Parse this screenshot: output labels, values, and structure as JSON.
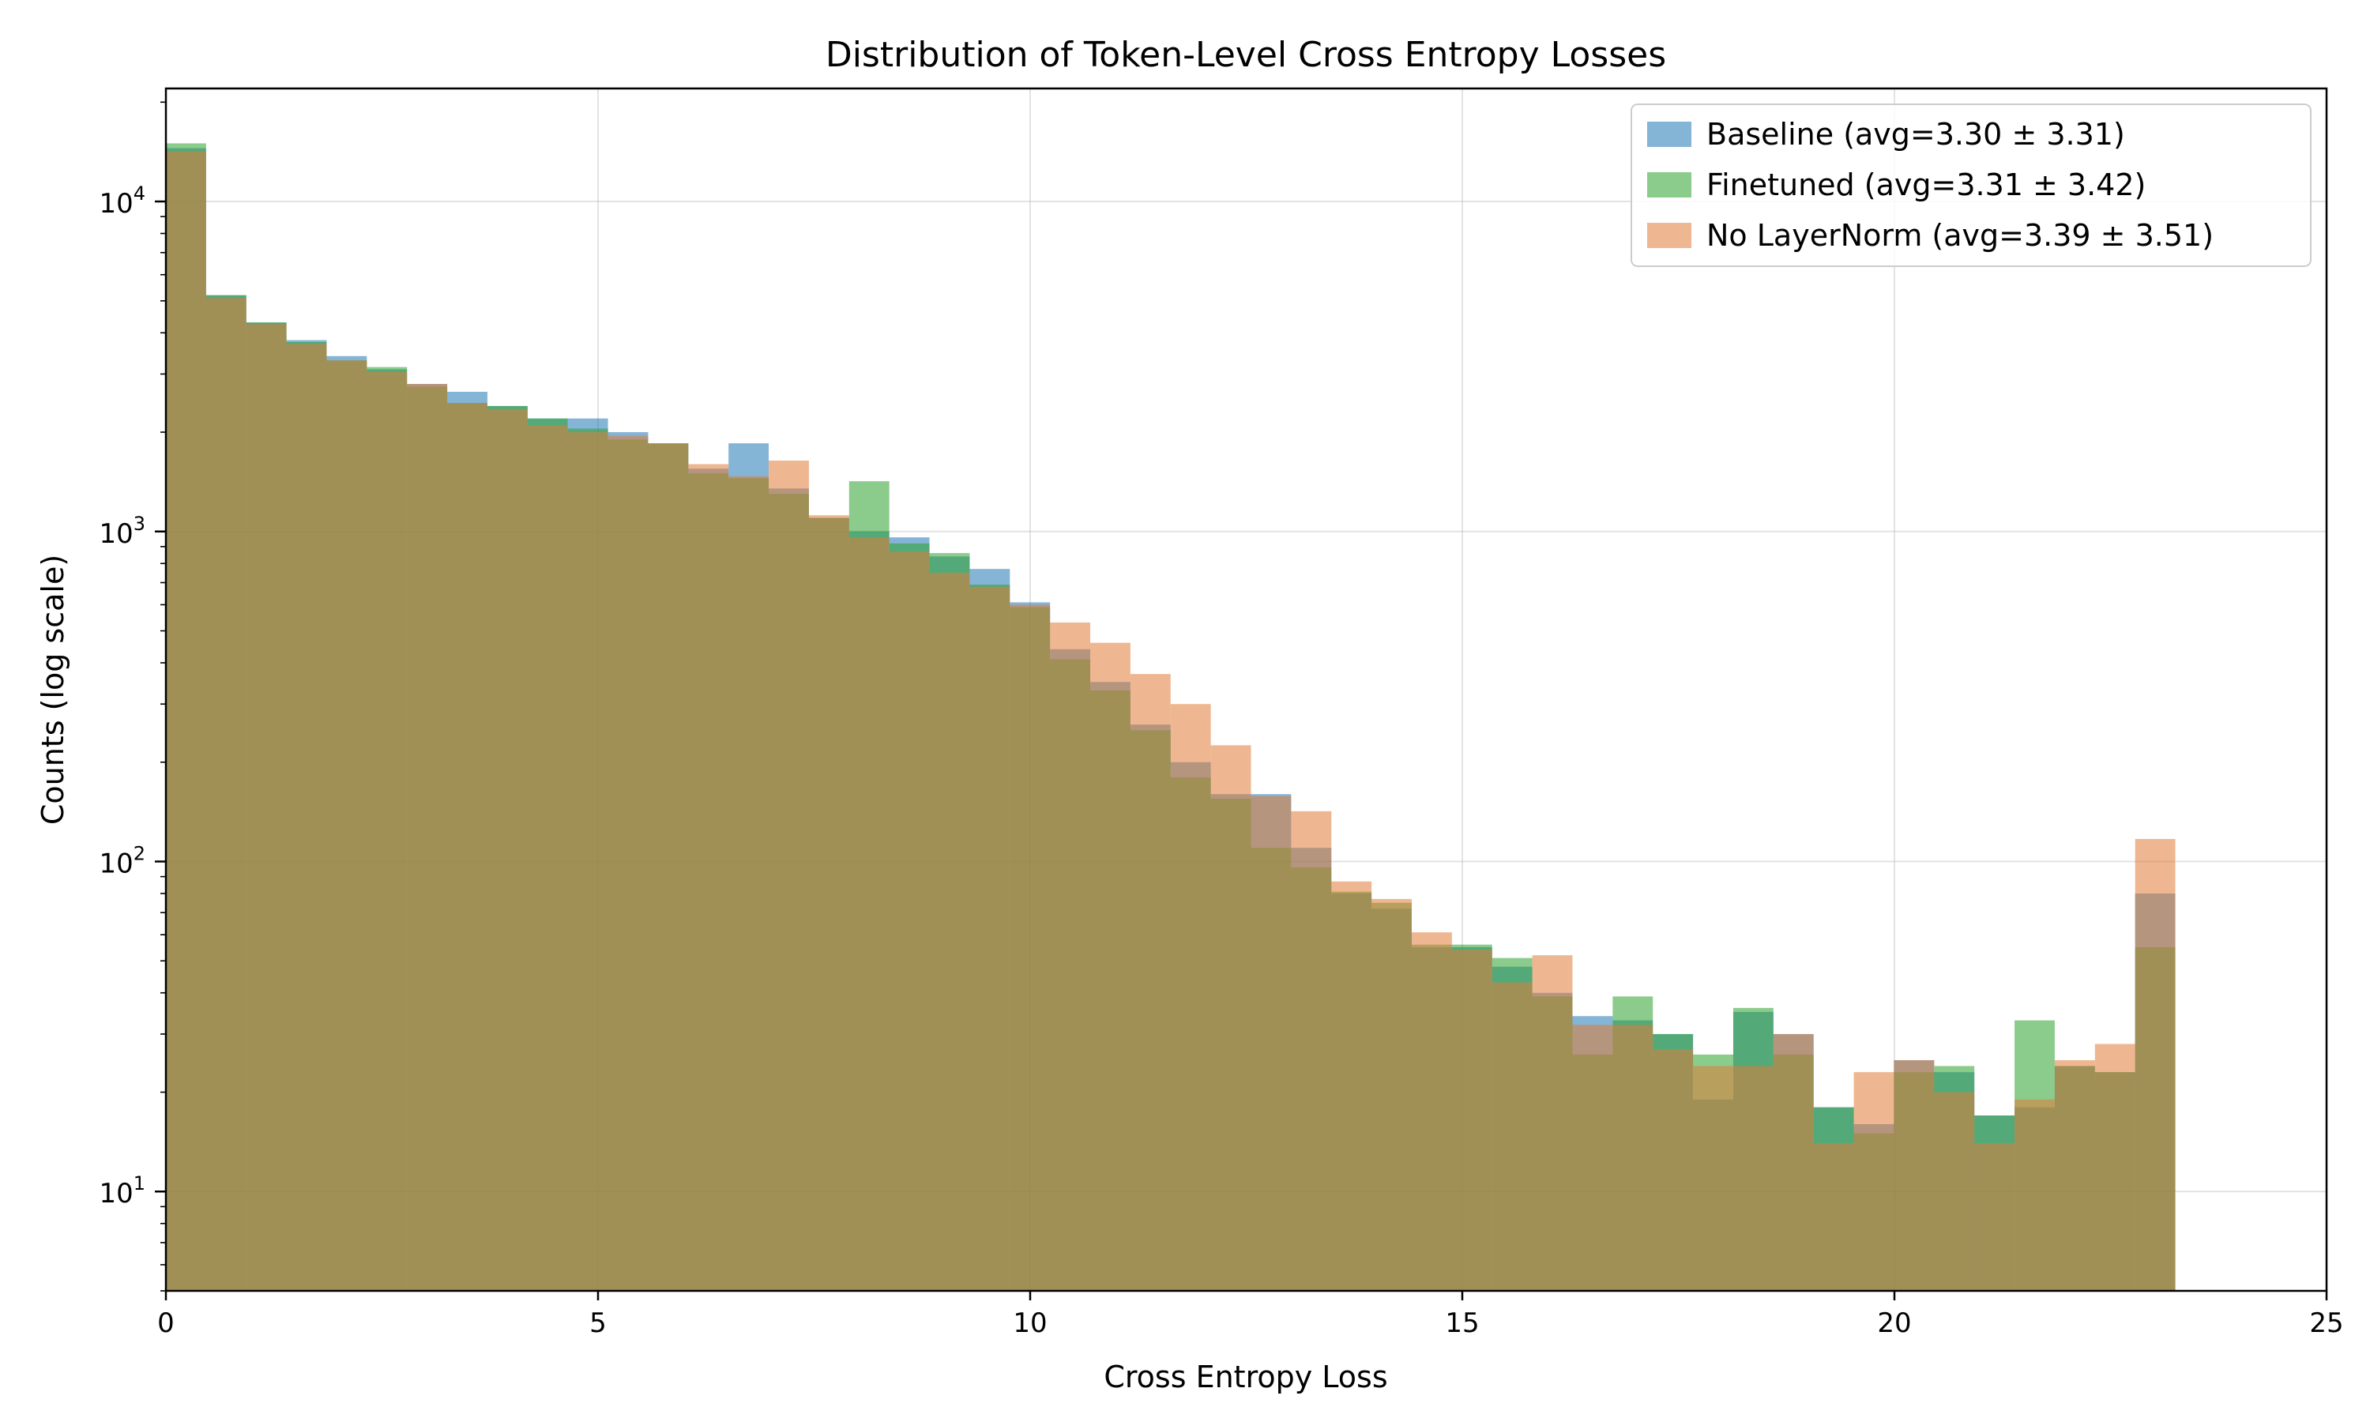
{
  "chart_data": {
    "type": "bar",
    "title": "Distribution of Token-Level Cross Entropy Losses",
    "xlabel": "Cross Entropy Loss",
    "ylabel": "Counts (log scale)",
    "xlim": [
      0,
      25
    ],
    "ylim": [
      5,
      22000
    ],
    "yscale": "log",
    "grid": true,
    "legend_position": "top-right",
    "bin_edges": [
      0.0,
      0.465,
      0.93,
      1.395,
      1.86,
      2.325,
      2.79,
      3.255,
      3.72,
      4.185,
      4.65,
      5.115,
      5.58,
      6.045,
      6.51,
      6.975,
      7.44,
      7.905,
      8.37,
      8.835,
      9.3,
      9.765,
      10.23,
      10.695,
      11.16,
      11.625,
      12.09,
      12.555,
      13.02,
      13.485,
      13.95,
      14.415,
      14.88,
      15.345,
      15.81,
      16.275,
      16.74,
      17.205,
      17.67,
      18.135,
      18.6,
      19.065,
      19.53,
      19.995,
      20.46,
      20.925,
      21.39,
      21.855,
      22.32,
      22.785,
      23.25
    ],
    "xticks": [
      0,
      5,
      10,
      15,
      20,
      25
    ],
    "xtick_labels": [
      "0",
      "5",
      "10",
      "15",
      "20",
      "25"
    ],
    "yticks": [
      10,
      100,
      1000,
      10000
    ],
    "ytick_labels": [
      {
        "base": "10",
        "exp": "1"
      },
      {
        "base": "10",
        "exp": "2"
      },
      {
        "base": "10",
        "exp": "3"
      },
      {
        "base": "10",
        "exp": "4"
      }
    ],
    "series": [
      {
        "name": "Baseline (avg=3.30 ± 3.31)",
        "color": "#1f77b4",
        "values": [
          14500,
          5200,
          4300,
          3800,
          3400,
          3100,
          2800,
          2650,
          2400,
          2200,
          2200,
          2000,
          1850,
          1550,
          1850,
          1350,
          1100,
          1000,
          960,
          840,
          770,
          610,
          440,
          350,
          260,
          200,
          160,
          160,
          110,
          80,
          72,
          55,
          55,
          48,
          40,
          34,
          33,
          30,
          19,
          35,
          30,
          18,
          16,
          25,
          23,
          17,
          18,
          24,
          23,
          80
        ]
      },
      {
        "name": "Finetuned (avg=3.31 ± 3.42)",
        "color": "#2ca02c",
        "values": [
          15000,
          5200,
          4300,
          3750,
          3300,
          3150,
          2750,
          2450,
          2400,
          2200,
          2050,
          1900,
          1850,
          1500,
          1450,
          1300,
          1100,
          1420,
          920,
          860,
          690,
          590,
          410,
          330,
          250,
          180,
          155,
          110,
          96,
          81,
          75,
          56,
          56,
          51,
          39,
          26,
          39,
          30,
          26,
          36,
          26,
          18,
          15,
          23,
          24,
          17,
          33,
          24,
          23,
          55
        ]
      },
      {
        "name": "No LayerNorm (avg=3.39 ± 3.51)",
        "color": "#e07b39",
        "values": [
          14200,
          5100,
          4250,
          3700,
          3300,
          3050,
          2800,
          2450,
          2350,
          2100,
          2000,
          1950,
          1850,
          1600,
          1470,
          1640,
          1120,
          960,
          870,
          750,
          680,
          600,
          530,
          460,
          370,
          300,
          225,
          158,
          142,
          87,
          77,
          61,
          54,
          43,
          52,
          32,
          32,
          27,
          24,
          24,
          30,
          14,
          23,
          25,
          20,
          14,
          19,
          25,
          28,
          117
        ]
      }
    ]
  }
}
